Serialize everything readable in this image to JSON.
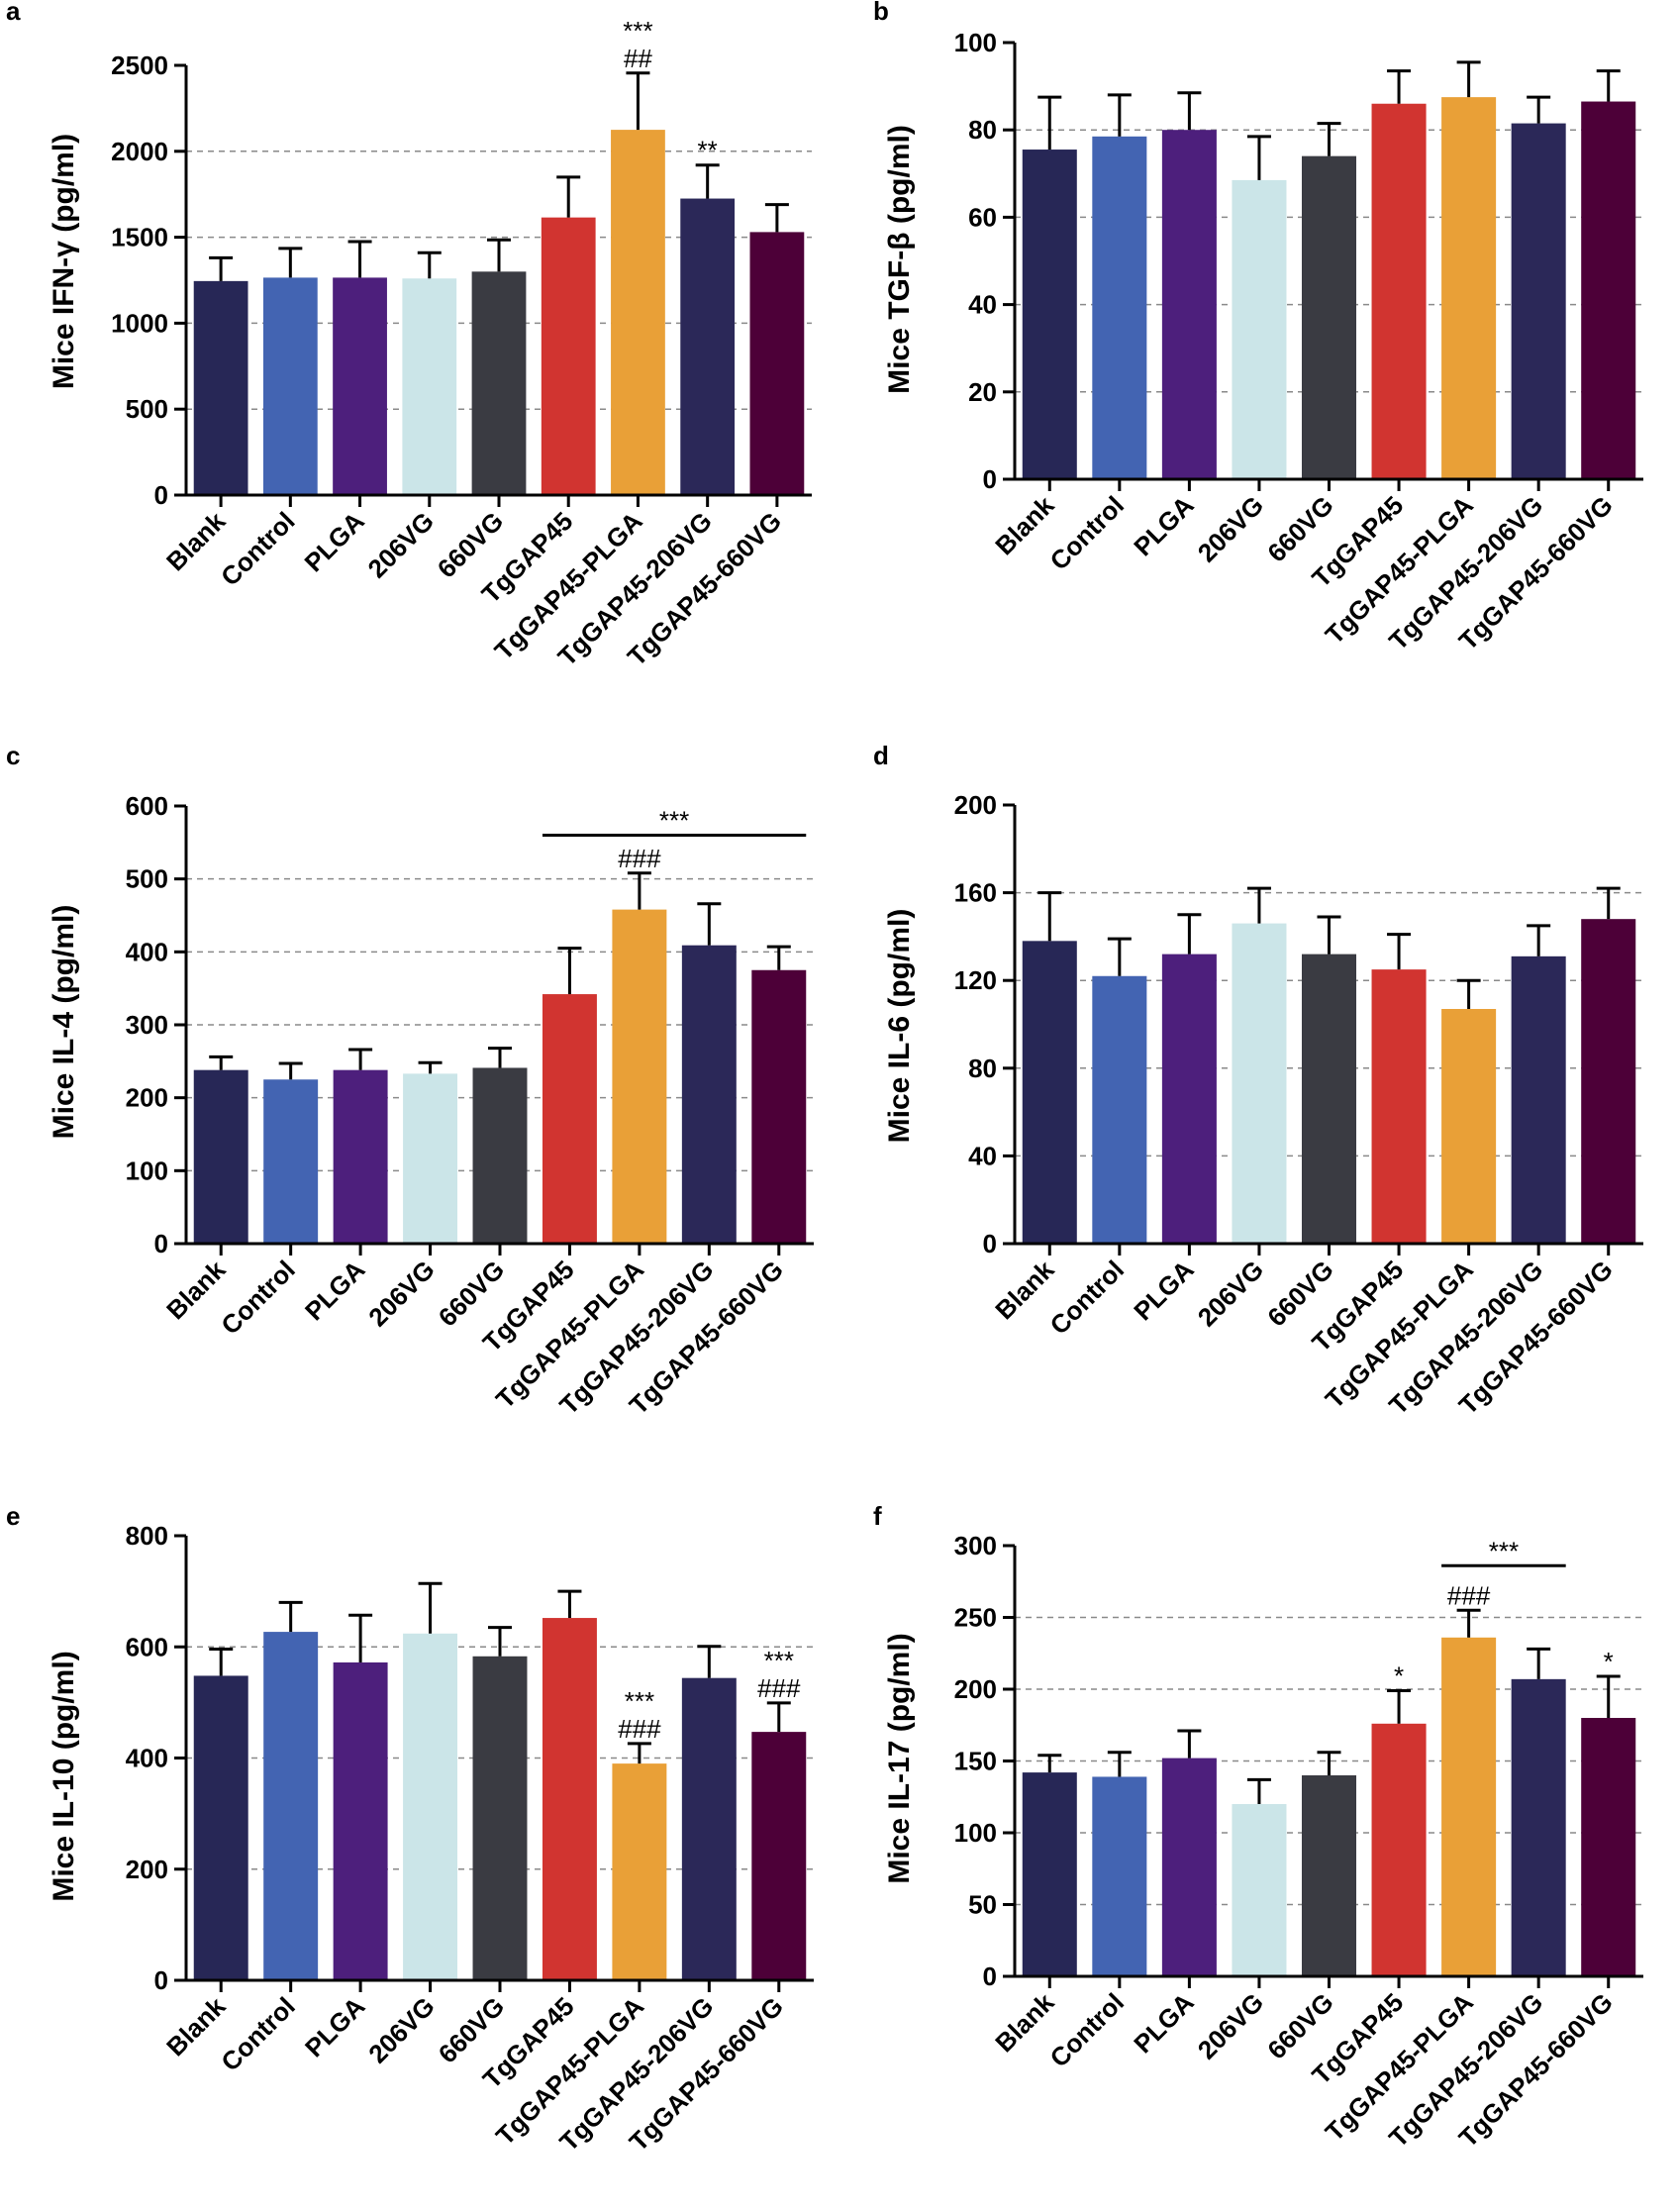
{
  "colors": [
    "#272756",
    "#4364b2",
    "#4d1f7c",
    "#cbe5e8",
    "#3a3b42",
    "#d13430",
    "#e9a037",
    "#2b2858",
    "#4d0038"
  ],
  "chart_data": [
    {
      "id": "a",
      "panel_label": "a",
      "type": "bar",
      "ylabel": "Mice IFN-γ (pg/ml)",
      "categories": [
        "Blank",
        "Control",
        "PLGA",
        "206VG",
        "660VG",
        "TgGAP45",
        "TgGAP45-PLGA",
        "TgGAP45-206VG",
        "TgGAP45-660VG"
      ],
      "values": [
        1245,
        1265,
        1265,
        1260,
        1300,
        1615,
        2125,
        1725,
        1530
      ],
      "errors": [
        135,
        170,
        210,
        150,
        185,
        235,
        330,
        195,
        160
      ],
      "ylim": [
        0,
        2500
      ],
      "yticks": [
        0,
        500,
        1000,
        1500,
        2000,
        2500
      ],
      "gridlines": [
        500,
        1000,
        1500,
        2000
      ],
      "annotations": [
        {
          "bar": 6,
          "lines": [
            "***",
            "##"
          ]
        },
        {
          "bar": 7,
          "lines": [
            "**"
          ]
        }
      ],
      "brackets": []
    },
    {
      "id": "b",
      "panel_label": "b",
      "type": "bar",
      "ylabel": "Mice TGF-β (pg/ml)",
      "categories": [
        "Blank",
        "Control",
        "PLGA",
        "206VG",
        "660VG",
        "TgGAP45",
        "TgGAP45-PLGA",
        "TgGAP45-206VG",
        "TgGAP45-660VG"
      ],
      "values": [
        75.5,
        78.5,
        80,
        68.5,
        74,
        86,
        87.5,
        81.5,
        86.5
      ],
      "errors": [
        12,
        9.5,
        8.5,
        10,
        7.5,
        7.5,
        8,
        6,
        7
      ],
      "ylim": [
        0,
        100
      ],
      "yticks": [
        0,
        20,
        40,
        60,
        80,
        100
      ],
      "gridlines": [
        20,
        40,
        60,
        80
      ],
      "annotations": [],
      "brackets": []
    },
    {
      "id": "c",
      "panel_label": "c",
      "type": "bar",
      "ylabel": "Mice IL-4 (pg/ml)",
      "categories": [
        "Blank",
        "Control",
        "PLGA",
        "206VG",
        "660VG",
        "TgGAP45",
        "TgGAP45-PLGA",
        "TgGAP45-206VG",
        "TgGAP45-660VG"
      ],
      "values": [
        238,
        225,
        238,
        233,
        241,
        342,
        458,
        409,
        375
      ],
      "errors": [
        18,
        22,
        28,
        15,
        27,
        63,
        50,
        57,
        32
      ],
      "ylim": [
        0,
        600
      ],
      "yticks": [
        0,
        100,
        200,
        300,
        400,
        500,
        600
      ],
      "gridlines": [
        100,
        200,
        300,
        400,
        500
      ],
      "annotations": [
        {
          "bar": 6,
          "lines": [
            "###"
          ]
        }
      ],
      "brackets": [
        {
          "from": 5,
          "to": 8,
          "level": 560,
          "label": "***"
        }
      ]
    },
    {
      "id": "d",
      "panel_label": "d",
      "type": "bar",
      "ylabel": "Mice IL-6 (pg/ml)",
      "categories": [
        "Blank",
        "Control",
        "PLGA",
        "206VG",
        "660VG",
        "TgGAP45",
        "TgGAP45-PLGA",
        "TgGAP45-206VG",
        "TgGAP45-660VG"
      ],
      "values": [
        138,
        122,
        132,
        146,
        132,
        125,
        107,
        131,
        148
      ],
      "errors": [
        22,
        17,
        18,
        16,
        17,
        16,
        13,
        14,
        14
      ],
      "ylim": [
        0,
        200
      ],
      "yticks": [
        0,
        40,
        80,
        120,
        160,
        200
      ],
      "gridlines": [
        40,
        80,
        120,
        160
      ],
      "annotations": [],
      "brackets": []
    },
    {
      "id": "e",
      "panel_label": "e",
      "type": "bar",
      "ylabel": "Mice IL-10 (pg/ml)",
      "categories": [
        "Blank",
        "Control",
        "PLGA",
        "206VG",
        "660VG",
        "TgGAP45",
        "TgGAP45-PLGA",
        "TgGAP45-206VG",
        "TgGAP45-660VG"
      ],
      "values": [
        548,
        627,
        572,
        624,
        583,
        652,
        390,
        544,
        447
      ],
      "errors": [
        48,
        53,
        85,
        90,
        52,
        48,
        36,
        57,
        52
      ],
      "ylim": [
        0,
        800
      ],
      "yticks": [
        0,
        200,
        400,
        600,
        800
      ],
      "gridlines": [
        200,
        400,
        600
      ],
      "annotations": [
        {
          "bar": 6,
          "lines": [
            "***",
            "###"
          ]
        },
        {
          "bar": 8,
          "lines": [
            "***",
            "###"
          ]
        }
      ],
      "brackets": []
    },
    {
      "id": "f",
      "panel_label": "f",
      "type": "bar",
      "ylabel": "Mice IL-17 (pg/ml)",
      "categories": [
        "Blank",
        "Control",
        "PLGA",
        "206VG",
        "660VG",
        "TgGAP45",
        "TgGAP45-PLGA",
        "TgGAP45-206VG",
        "TgGAP45-660VG"
      ],
      "values": [
        142,
        139,
        152,
        120,
        140,
        176,
        236,
        207,
        180
      ],
      "errors": [
        12,
        17,
        19,
        17,
        16,
        23,
        19,
        21,
        29
      ],
      "ylim": [
        0,
        300
      ],
      "yticks": [
        0,
        50,
        100,
        150,
        200,
        250,
        300
      ],
      "gridlines": [
        50,
        100,
        150,
        200,
        250
      ],
      "annotations": [
        {
          "bar": 5,
          "lines": [
            "*"
          ]
        },
        {
          "bar": 6,
          "lines": [
            "###"
          ]
        },
        {
          "bar": 8,
          "lines": [
            "*"
          ]
        }
      ],
      "brackets": [
        {
          "from": 6,
          "to": 7,
          "level": 286,
          "label": "***"
        }
      ]
    }
  ]
}
